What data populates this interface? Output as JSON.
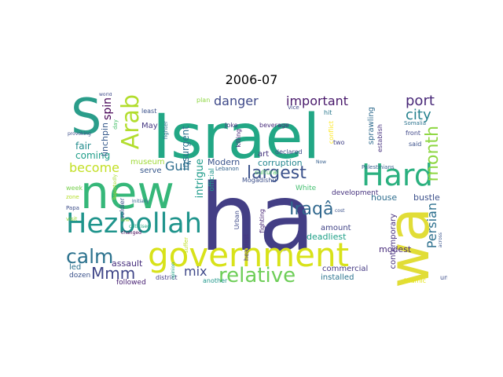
{
  "title": "2006-07",
  "words": [
    {
      "text": "Israel",
      "color": "#22a785",
      "vertical": false
    },
    {
      "text": "new",
      "color": "#35b779",
      "vertical": false
    },
    {
      "text": "ha",
      "color": "#433e85",
      "vertical": false
    },
    {
      "text": "wa",
      "color": "#e1dd37",
      "vertical": true
    },
    {
      "text": "S",
      "color": "#2a9d8a",
      "vertical": false
    },
    {
      "text": "government",
      "color": "#d8e219",
      "vertical": false
    },
    {
      "text": "Hezbollah",
      "color": "#1f948c",
      "vertical": false
    },
    {
      "text": "Hard",
      "color": "#2ab07f",
      "vertical": false
    },
    {
      "text": "Arab",
      "color": "#b2dd2d",
      "vertical": true
    },
    {
      "text": "largest",
      "color": "#3b528b",
      "vertical": false
    },
    {
      "text": "month",
      "color": "#8fd744",
      "vertical": true
    },
    {
      "text": "Iraqâ",
      "color": "#31688e",
      "vertical": false
    },
    {
      "text": "calm",
      "color": "#2c728e",
      "vertical": false
    },
    {
      "text": "relative",
      "color": "#6ece58",
      "vertical": false
    },
    {
      "text": "danger",
      "color": "#3e4989",
      "vertical": false
    },
    {
      "text": "important",
      "color": "#48186a",
      "vertical": false
    },
    {
      "text": "port",
      "color": "#482878",
      "vertical": false
    },
    {
      "text": "city",
      "color": "#26828e",
      "vertical": false
    },
    {
      "text": "Persian",
      "color": "#2d708e",
      "vertical": true
    },
    {
      "text": "become",
      "color": "#c2df23",
      "vertical": false
    },
    {
      "text": "Gulf",
      "color": "#2e6e8e",
      "vertical": false
    },
    {
      "text": "Mmm",
      "color": "#404688",
      "vertical": false
    },
    {
      "text": "mix",
      "color": "#3f4889",
      "vertical": false
    },
    {
      "text": "spin",
      "color": "#440154",
      "vertical": true
    },
    {
      "text": "fair",
      "color": "#228c8d",
      "vertical": false
    },
    {
      "text": "coming",
      "color": "#1f9e89",
      "vertical": false
    },
    {
      "text": "museum",
      "color": "#a0da39",
      "vertical": false
    },
    {
      "text": "serve",
      "color": "#38588c",
      "vertical": false
    },
    {
      "text": "Modern",
      "color": "#3a548c",
      "vertical": false
    },
    {
      "text": "corruption",
      "color": "#24868e",
      "vertical": false
    },
    {
      "text": "art",
      "color": "#46337e",
      "vertical": false
    },
    {
      "text": "assault",
      "color": "#472f7d",
      "vertical": false
    },
    {
      "text": "intrigue",
      "color": "#1e9b8a",
      "vertical": true
    },
    {
      "text": "insurgent",
      "color": "#2d718e",
      "vertical": true
    },
    {
      "text": "linchpin",
      "color": "#375a8c",
      "vertical": true
    },
    {
      "text": "May",
      "color": "#453882",
      "vertical": false
    },
    {
      "text": "deadliest",
      "color": "#1fa088",
      "vertical": false
    },
    {
      "text": "amount",
      "color": "#414487",
      "vertical": false
    },
    {
      "text": "house",
      "color": "#2e6d8e",
      "vertical": false
    },
    {
      "text": "bustle",
      "color": "#3c508b",
      "vertical": false
    },
    {
      "text": "modest",
      "color": "#472a7a",
      "vertical": false
    },
    {
      "text": "commercial",
      "color": "#443983",
      "vertical": false
    },
    {
      "text": "installed",
      "color": "#2b748e",
      "vertical": false
    },
    {
      "text": "contemporary",
      "color": "#46307e",
      "vertical": true
    },
    {
      "text": "sprawling",
      "color": "#2f6b8e",
      "vertical": true
    },
    {
      "text": "development",
      "color": "#46327e",
      "vertical": false
    },
    {
      "text": "White",
      "color": "#44bf70",
      "vertical": false
    },
    {
      "text": "official",
      "color": "#1f968b",
      "vertical": true
    },
    {
      "text": "led",
      "color": "#2d708e",
      "vertical": false
    },
    {
      "text": "dozen",
      "color": "#3b528b",
      "vertical": false
    },
    {
      "text": "followed",
      "color": "#482173",
      "vertical": false
    },
    {
      "text": "soldier",
      "color": "#3a538b",
      "vertical": true
    },
    {
      "text": "week",
      "color": "#7ad151",
      "vertical": false
    },
    {
      "text": "zone",
      "color": "#b5de2b",
      "vertical": false
    },
    {
      "text": "Papa",
      "color": "#3d4e8a",
      "vertical": false
    },
    {
      "text": "visit",
      "color": "#9bd93c",
      "vertical": false
    },
    {
      "text": "district",
      "color": "#433d84",
      "vertical": false
    },
    {
      "text": "another",
      "color": "#1f978b",
      "vertical": false
    },
    {
      "text": "heaviest",
      "color": "#46337f",
      "vertical": true
    },
    {
      "text": "Urban",
      "color": "#3e4a89",
      "vertical": true
    },
    {
      "text": "fighting",
      "color": "#482576",
      "vertical": true
    },
    {
      "text": "Mogadishu",
      "color": "#3c4f8a",
      "vertical": false
    },
    {
      "text": "cultural",
      "color": "#54c568",
      "vertical": false
    },
    {
      "text": "Islamic",
      "color": "#e5e419",
      "vertical": false
    },
    {
      "text": "un",
      "color": "#3d4d8a",
      "vertical": false
    },
    {
      "text": "Joke",
      "color": "#453781",
      "vertical": false
    },
    {
      "text": "killing",
      "color": "#482677",
      "vertical": true
    },
    {
      "text": "beverage",
      "color": "#472c7a",
      "vertical": false
    },
    {
      "text": "declared",
      "color": "#3e4c8a",
      "vertical": false
    },
    {
      "text": "Lebanon",
      "color": "#33638d",
      "vertical": false
    },
    {
      "text": "Vice",
      "color": "#3f4788",
      "vertical": false
    },
    {
      "text": "hit",
      "color": "#2a788e",
      "vertical": false
    },
    {
      "text": "conflict",
      "color": "#fde725",
      "vertical": true
    },
    {
      "text": "two",
      "color": "#414287",
      "vertical": false
    },
    {
      "text": "establish",
      "color": "#46327e",
      "vertical": true
    },
    {
      "text": "front",
      "color": "#3f4788",
      "vertical": false
    },
    {
      "text": "said",
      "color": "#3b518b",
      "vertical": false
    },
    {
      "text": "Somalia",
      "color": "#2c738e",
      "vertical": false
    },
    {
      "text": "Palestinians",
      "color": "#355f8d",
      "vertical": false
    },
    {
      "text": "across",
      "color": "#3a548c",
      "vertical": true
    },
    {
      "text": "Now",
      "color": "#355e8d",
      "vertical": false
    },
    {
      "text": "plan",
      "color": "#8fd744",
      "vertical": false
    },
    {
      "text": "suffer",
      "color": "#bddf26",
      "vertical": true
    },
    {
      "text": "least",
      "color": "#3b518b",
      "vertical": false
    },
    {
      "text": "world",
      "color": "#3e4a89",
      "vertical": false
    },
    {
      "text": "provoking",
      "color": "#3d4e8a",
      "vertical": false
    },
    {
      "text": "day",
      "color": "#4ac16d",
      "vertical": true
    },
    {
      "text": "fighter",
      "color": "#2c728e",
      "vertical": true
    },
    {
      "text": "Initially",
      "color": "#32658e",
      "vertical": false
    },
    {
      "text": "line",
      "color": "#a2da37",
      "vertical": false
    },
    {
      "text": "criticised",
      "color": "#22a884",
      "vertical": false
    },
    {
      "text": "changed",
      "color": "#440154",
      "vertical": false
    },
    {
      "text": "Reportedly",
      "color": "#a8db34",
      "vertical": true
    },
    {
      "text": "opinion",
      "color": "#1fa187",
      "vertical": true
    },
    {
      "text": "cost",
      "color": "#3b528b",
      "vertical": false
    }
  ]
}
